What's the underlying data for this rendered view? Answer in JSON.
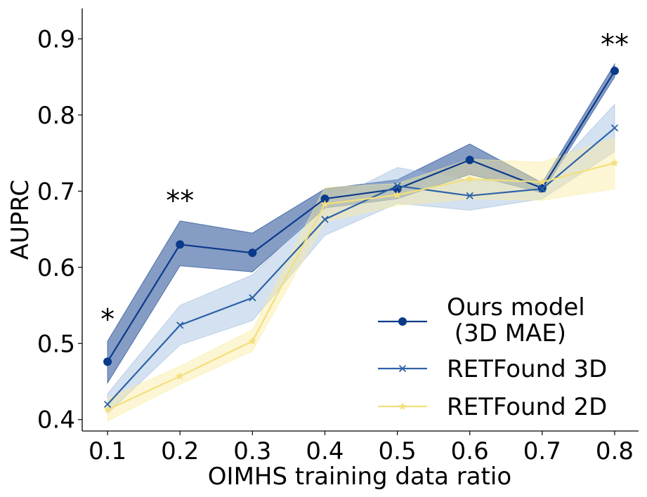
{
  "chart_data": {
    "type": "line",
    "xlabel": "OIMHS training data ratio",
    "ylabel": "AUPRC",
    "x": [
      0.1,
      0.2,
      0.3,
      0.4,
      0.5,
      0.6,
      0.7,
      0.8
    ],
    "x_ticks": [
      "0.1",
      "0.2",
      "0.3",
      "0.4",
      "0.5",
      "0.6",
      "0.7",
      "0.8"
    ],
    "y_ticks": [
      "0.4",
      "0.5",
      "0.6",
      "0.7",
      "0.8",
      "0.9"
    ],
    "ylim": [
      0.385,
      0.94
    ],
    "xlim": [
      0.065,
      0.833
    ],
    "grid": false,
    "legend_position": "bottom-right",
    "series": [
      {
        "name": "Ours model\n (3D MAE)",
        "marker": "circle",
        "color": "#0b3a8a",
        "band_color": "#0b3a8a",
        "band_opacity": 0.5,
        "values": [
          0.476,
          0.63,
          0.619,
          0.69,
          0.703,
          0.741,
          0.704,
          0.858
        ],
        "lower": [
          0.448,
          0.602,
          0.594,
          0.678,
          0.69,
          0.722,
          0.698,
          0.85
        ],
        "upper": [
          0.503,
          0.661,
          0.645,
          0.703,
          0.715,
          0.762,
          0.711,
          0.867
        ]
      },
      {
        "name": "RETFound 3D",
        "marker": "x",
        "color": "#2e63a8",
        "band_color": "#94b3da",
        "band_opacity": 0.4,
        "values": [
          0.42,
          0.524,
          0.56,
          0.663,
          0.707,
          0.694,
          0.703,
          0.783
        ],
        "lower": [
          0.408,
          0.498,
          0.53,
          0.642,
          0.684,
          0.675,
          0.69,
          0.752
        ],
        "upper": [
          0.434,
          0.55,
          0.59,
          0.684,
          0.731,
          0.714,
          0.712,
          0.814
        ]
      },
      {
        "name": "RETFound 2D",
        "marker": "star",
        "color": "#f3e07c",
        "band_color": "#f9ec9f",
        "band_opacity": 0.45,
        "values": [
          0.413,
          0.457,
          0.503,
          0.683,
          0.695,
          0.716,
          0.712,
          0.737
        ],
        "lower": [
          0.398,
          0.446,
          0.49,
          0.66,
          0.681,
          0.69,
          0.688,
          0.703
        ],
        "upper": [
          0.428,
          0.47,
          0.518,
          0.705,
          0.71,
          0.742,
          0.738,
          0.77
        ]
      }
    ],
    "annotations": [
      {
        "x": 0.1,
        "y": 0.532,
        "text": "*"
      },
      {
        "x": 0.2,
        "y": 0.688,
        "text": "**"
      },
      {
        "x": 0.8,
        "y": 0.893,
        "text": "**"
      }
    ]
  }
}
